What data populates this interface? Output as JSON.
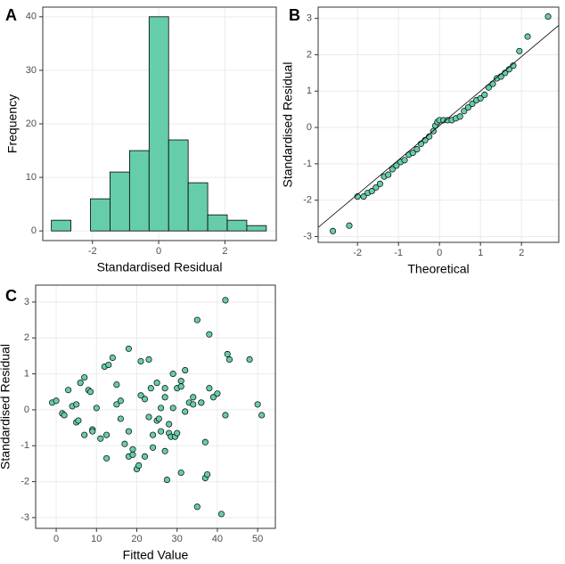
{
  "chart_data": [
    {
      "type": "histogram",
      "label": "A",
      "x_label": "Standardised Residual",
      "y_label": "Frequency",
      "bins": [
        -3.24,
        -2.65,
        -2.06,
        -1.47,
        -0.88,
        -0.29,
        0.3,
        0.89,
        1.48,
        2.07,
        2.66,
        3.25
      ],
      "values": [
        2,
        0,
        6,
        11,
        15,
        40,
        17,
        9,
        3,
        2,
        1
      ],
      "color": "#66cdaa",
      "xlim": [
        -3.5,
        3.55
      ],
      "ylim": [
        -1.8,
        41.8
      ],
      "xticks": [
        -2,
        0,
        2
      ],
      "yticks": [
        0,
        10,
        20,
        30,
        40
      ],
      "grid": true
    },
    {
      "type": "scatter",
      "label": "B",
      "x_label": "Theoretical",
      "y_label": "Standardised Residual",
      "x": [
        -2.6,
        -2.2,
        -2.0,
        -1.85,
        -1.75,
        -1.65,
        -1.55,
        -1.45,
        -1.35,
        -1.25,
        -1.15,
        -1.05,
        -0.95,
        -0.85,
        -0.75,
        -0.65,
        -0.55,
        -0.45,
        -0.35,
        -0.25,
        -0.15,
        -0.1,
        -0.05,
        0,
        0.1,
        0.2,
        0.3,
        0.4,
        0.5,
        0.6,
        0.7,
        0.8,
        0.9,
        1.0,
        1.1,
        1.2,
        1.3,
        1.4,
        1.5,
        1.6,
        1.7,
        1.8,
        1.95,
        2.15,
        2.65
      ],
      "values": [
        -2.85,
        -2.7,
        -1.9,
        -1.9,
        -1.8,
        -1.75,
        -1.65,
        -1.55,
        -1.35,
        -1.3,
        -1.15,
        -1.05,
        -0.95,
        -0.9,
        -0.75,
        -0.7,
        -0.6,
        -0.45,
        -0.35,
        -0.25,
        -0.1,
        0.05,
        0.15,
        0.2,
        0.2,
        0.2,
        0.2,
        0.25,
        0.3,
        0.45,
        0.55,
        0.65,
        0.75,
        0.8,
        0.9,
        1.1,
        1.2,
        1.35,
        1.4,
        1.5,
        1.6,
        1.7,
        2.1,
        2.5,
        3.05
      ],
      "reference_line": {
        "x": [
          -2.96,
          2.91
        ],
        "values": [
          -2.75,
          2.81
        ]
      },
      "color": "#66cdaa",
      "xlim": [
        -2.96,
        2.91
      ],
      "ylim": [
        -3.16,
        3.31
      ],
      "xticks": [
        -2,
        -1,
        0,
        1,
        2
      ],
      "yticks": [
        -3,
        -2,
        -1,
        0,
        1,
        2,
        3
      ],
      "grid": true
    },
    {
      "type": "scatter",
      "label": "C",
      "x_label": "Fitted Value",
      "y_label": "Standardised Residual",
      "x": [
        -1,
        0,
        1.5,
        2,
        3,
        4,
        5,
        5,
        5.5,
        6,
        7,
        7,
        8,
        8.5,
        9,
        9,
        10,
        11,
        12,
        12.5,
        13,
        12.5,
        14,
        15,
        15,
        16,
        16,
        17,
        18,
        18,
        18,
        19,
        19,
        20,
        20.5,
        21,
        21,
        22,
        22,
        23,
        23,
        23.5,
        24,
        24,
        25,
        25,
        25.5,
        26,
        26,
        27,
        27,
        27,
        27.5,
        28,
        28,
        28.5,
        29,
        29,
        29.5,
        30,
        30,
        31,
        31,
        31,
        32,
        32,
        33,
        34,
        34,
        35,
        35,
        36,
        36,
        37,
        37,
        37.5,
        38,
        38,
        39,
        40,
        41,
        42,
        42,
        42.5,
        43,
        48,
        50,
        51
      ],
      "values": [
        0.2,
        0.25,
        -0.1,
        -0.15,
        0.55,
        0.1,
        0.15,
        -0.35,
        -0.3,
        0.75,
        0.9,
        -0.7,
        0.55,
        0.5,
        -0.55,
        -0.6,
        0.05,
        -0.8,
        1.2,
        -0.7,
        1.25,
        -1.35,
        1.45,
        0.15,
        0.7,
        0.25,
        -0.25,
        -0.95,
        1.7,
        -1.3,
        -0.6,
        -1.25,
        -1.1,
        -1.65,
        -1.55,
        0.4,
        1.35,
        0.3,
        -1.3,
        -0.2,
        1.4,
        0.6,
        -0.7,
        -1.05,
        0.75,
        -0.3,
        -0.25,
        0.05,
        -0.6,
        0.6,
        0.35,
        -1.15,
        -1.95,
        -0.65,
        -0.4,
        -0.75,
        0.05,
        1.0,
        -0.75,
        0.6,
        -0.65,
        0.8,
        0.65,
        -1.75,
        1.1,
        -0.05,
        0.2,
        0.35,
        0.15,
        2.5,
        -2.7,
        0.2,
        0.2,
        -0.9,
        -1.9,
        -1.8,
        2.1,
        0.6,
        0.35,
        0.45,
        -2.9,
        3.05,
        -0.15,
        1.55,
        1.4,
        1.4,
        0.15,
        -0.15
      ],
      "color": "#66cdaa",
      "xlim": [
        -5.1,
        54.4
      ],
      "ylim": [
        -3.3,
        3.47
      ],
      "xticks": [
        0,
        10,
        20,
        30,
        40,
        50
      ],
      "yticks": [
        -3,
        -2,
        -1,
        0,
        1,
        2,
        3
      ],
      "grid": true
    }
  ]
}
